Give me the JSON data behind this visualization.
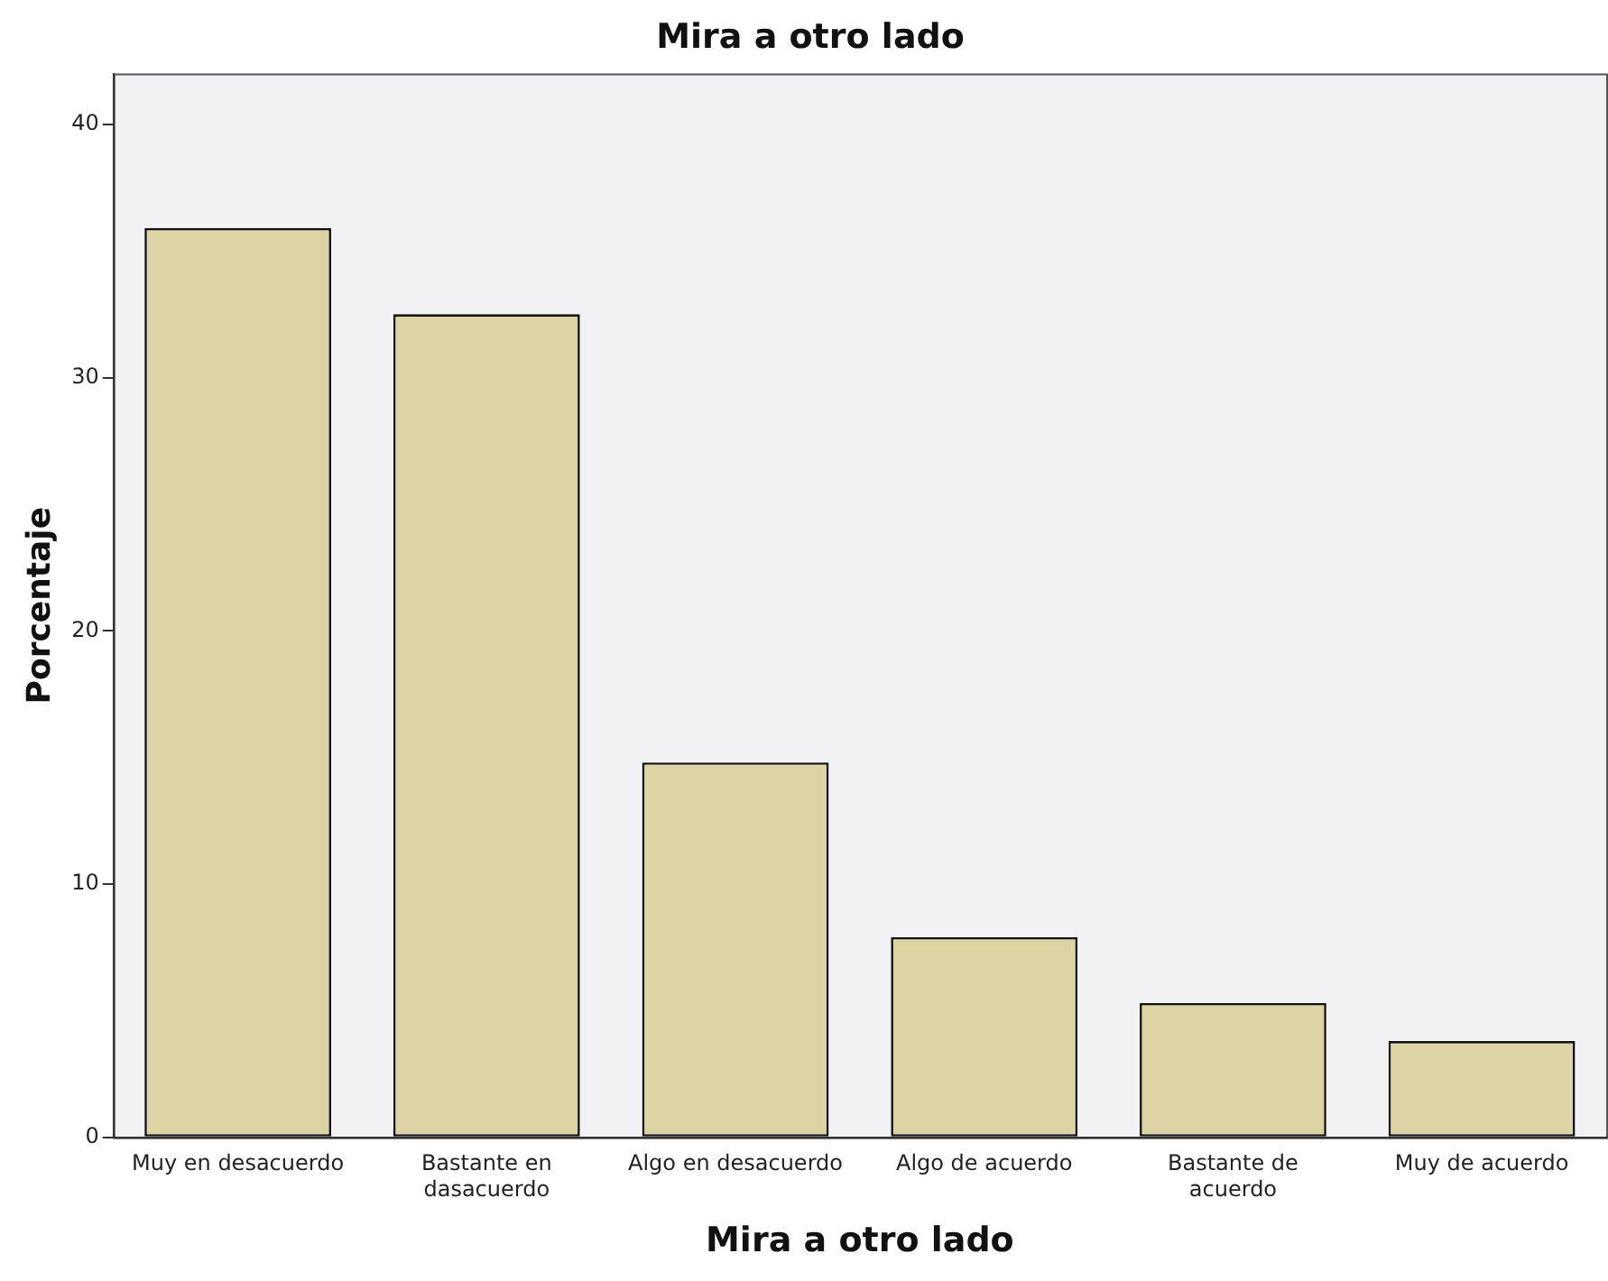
{
  "chart_data": {
    "type": "bar",
    "title": "Mira a otro lado",
    "xlabel": "Mira a otro lado",
    "ylabel": "Porcentaje",
    "categories": [
      "Muy en desacuerdo",
      "Bastante en dasacuerdo",
      "Algo en desacuerdo",
      "Algo de acuerdo",
      "Bastante de acuerdo",
      "Muy de acuerdo"
    ],
    "values": [
      35.9,
      32.5,
      14.8,
      7.9,
      5.3,
      3.8
    ],
    "color": "#dcd4a4",
    "ylim": [
      0,
      42
    ],
    "yticks": [
      0,
      10,
      20,
      30,
      40
    ],
    "grid": false,
    "legend": false
  }
}
